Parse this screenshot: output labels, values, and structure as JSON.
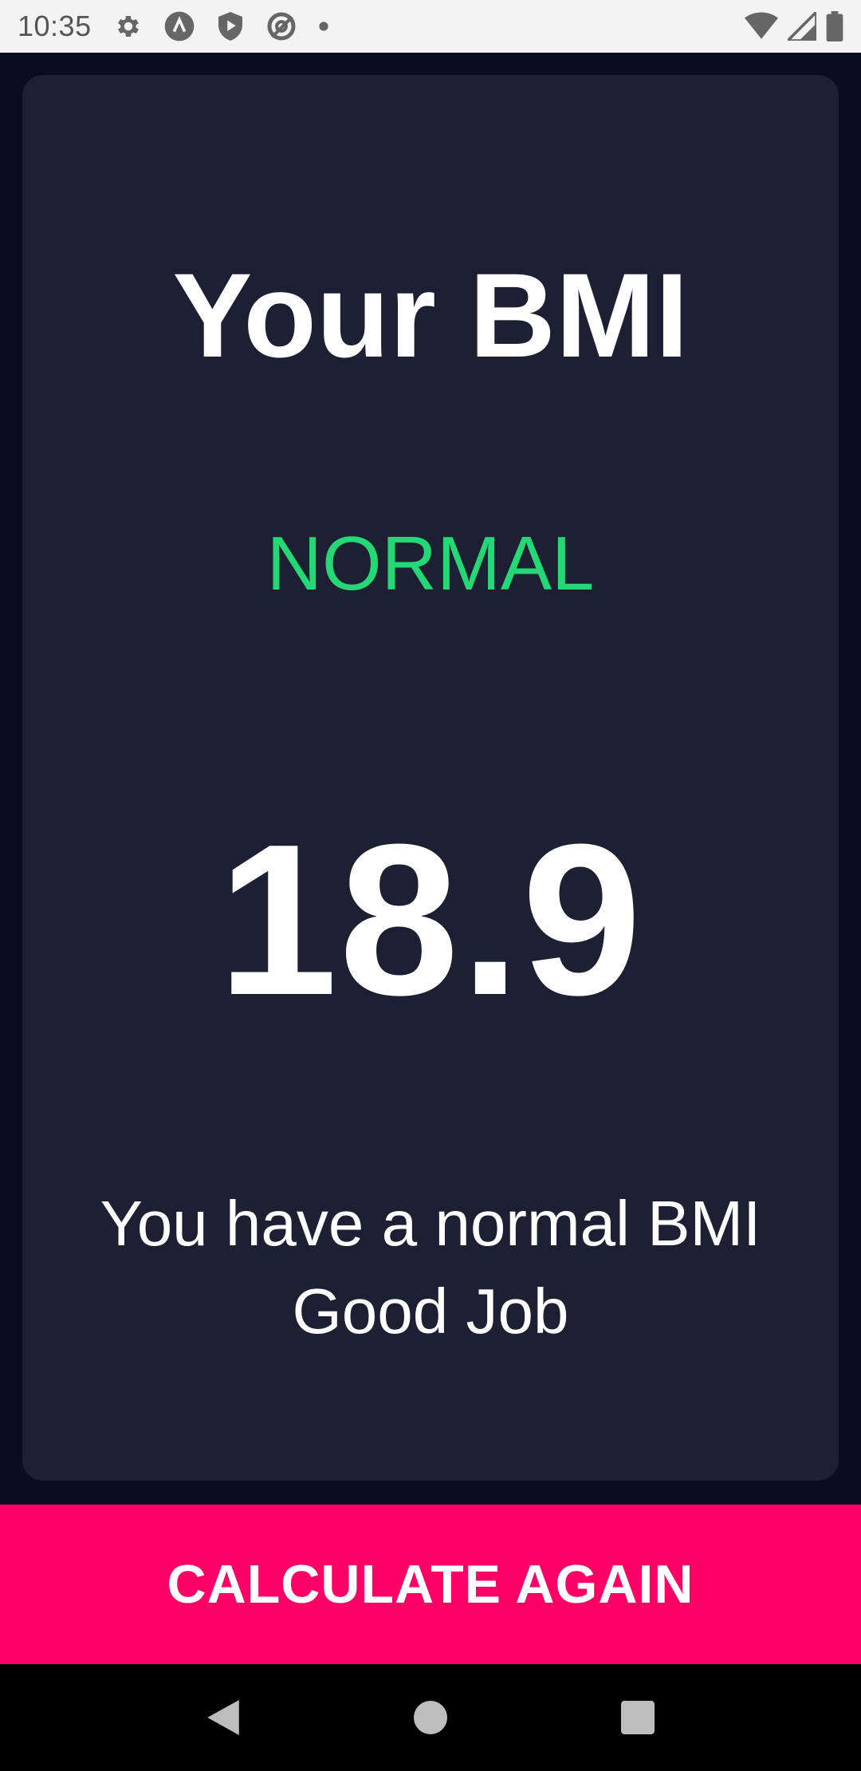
{
  "status_bar": {
    "time": "10:35",
    "left_icons": [
      "settings-icon",
      "app-notification-icon",
      "play-protect-icon",
      "data-saver-icon",
      "dot-icon"
    ],
    "right_icons": [
      "wifi-icon",
      "signal-icon",
      "battery-icon"
    ]
  },
  "result": {
    "title": "Your BMI",
    "category": "NORMAL",
    "category_color": "#24d876",
    "value": "18.9",
    "message_line1": "You have a normal BMI",
    "message_line2": "Good Job"
  },
  "actions": {
    "calculate_again_label": "CALCULATE AGAIN",
    "accent_color": "#ff0066"
  },
  "nav_bar": {
    "buttons": [
      "back-icon",
      "home-icon",
      "recents-icon"
    ]
  },
  "colors": {
    "background": "#0a0d22",
    "card": "#1d1f33"
  }
}
